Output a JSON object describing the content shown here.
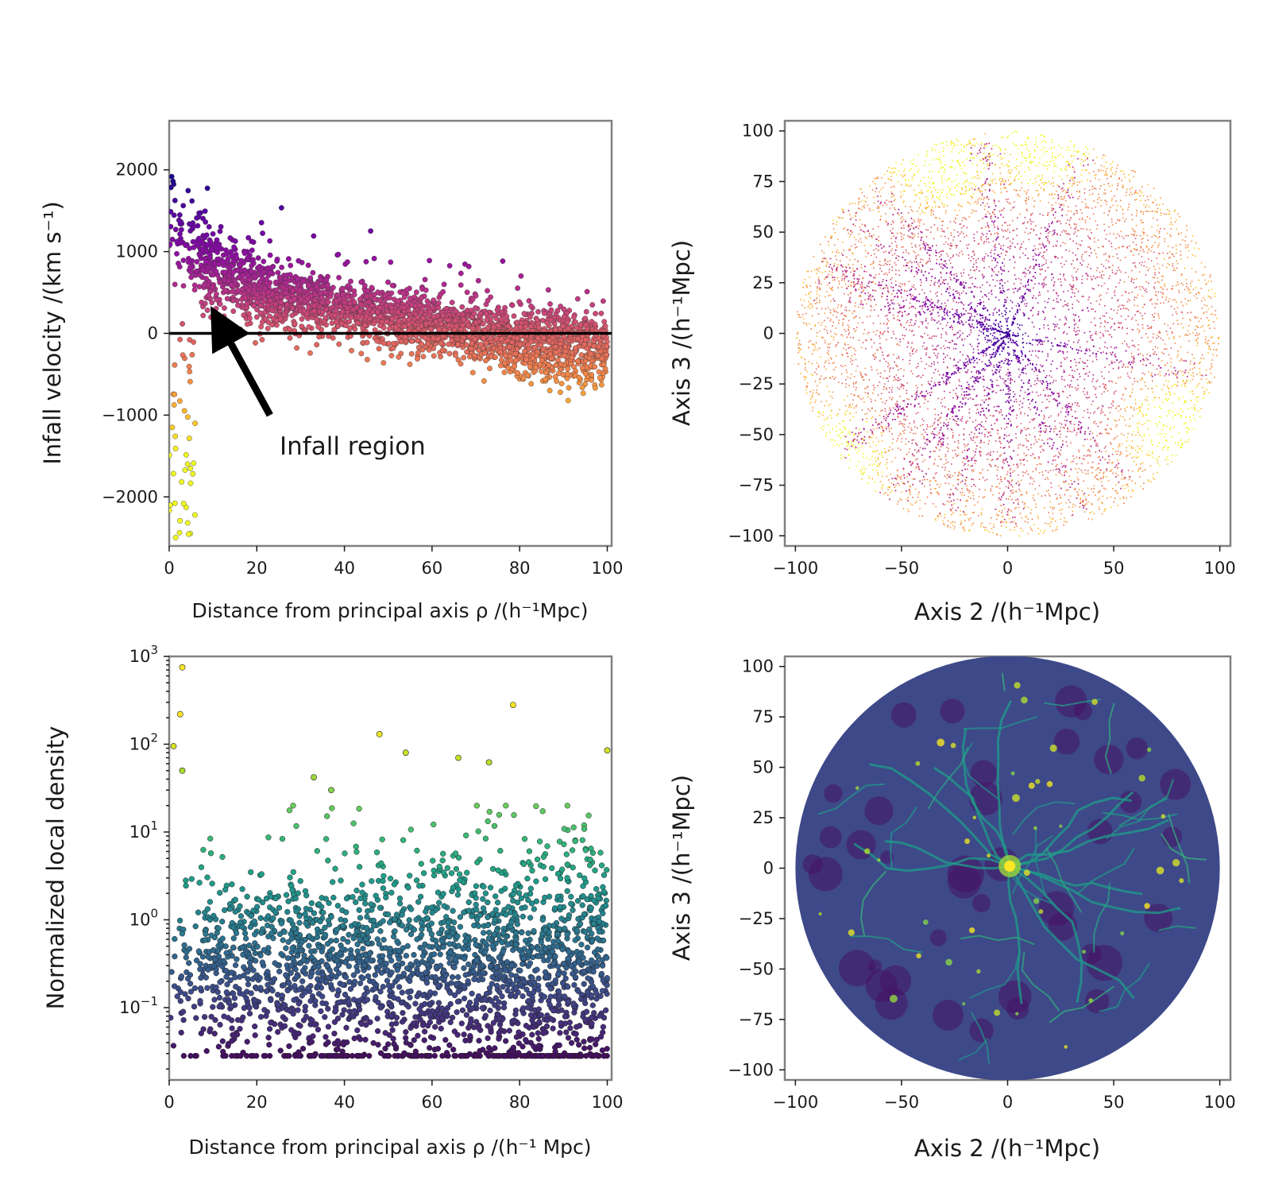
{
  "chart_data": [
    {
      "id": "panel-a",
      "type": "scatter",
      "title": "",
      "xlabel": "Distance from principal axis ρ  /(h⁻¹Mpc)",
      "ylabel": "Infall velocity /(km s⁻¹)",
      "xlim": [
        0,
        101
      ],
      "ylim": [
        -2600,
        2600
      ],
      "xticks": [
        0,
        20,
        40,
        60,
        80,
        100
      ],
      "yticks": [
        -2000,
        -1000,
        0,
        1000,
        2000
      ],
      "xtick_labels": [
        "0",
        "20",
        "40",
        "60",
        "80",
        "100"
      ],
      "ytick_labels": [
        "−2000",
        "−1000",
        "0",
        "1000",
        "2000"
      ],
      "colormap": "plasma",
      "color_by": "infall velocity (high = dark purple, low = yellow)",
      "reference_line": {
        "y": 0,
        "color": "#000000"
      },
      "trend": {
        "x": [
          0,
          5,
          10,
          20,
          30,
          40,
          50,
          60,
          70,
          80,
          90,
          100
        ],
        "median_y": [
          1400,
          1000,
          800,
          550,
          400,
          300,
          200,
          120,
          0,
          -100,
          -150,
          -200
        ],
        "spread": [
          600,
          500,
          380,
          320,
          280,
          260,
          260,
          260,
          280,
          300,
          320,
          330
        ]
      },
      "annotation": {
        "text": "Infall region",
        "arrow_from": [
          23,
          -1000
        ],
        "arrow_to": [
          11,
          180
        ]
      }
    },
    {
      "id": "panel-b",
      "type": "scatter",
      "title": "",
      "xlabel": "Axis 2 /(h⁻¹Mpc)",
      "ylabel": "Axis 3 /(h⁻¹Mpc)",
      "xlim": [
        -105,
        105
      ],
      "ylim": [
        -105,
        105
      ],
      "xticks": [
        -100,
        -50,
        0,
        50,
        100
      ],
      "yticks": [
        -100,
        -75,
        -50,
        -25,
        0,
        25,
        50,
        75,
        100
      ],
      "xtick_labels": [
        "−100",
        "−50",
        "0",
        "50",
        "100"
      ],
      "ytick_labels": [
        "−100",
        "−75",
        "−50",
        "−25",
        "0",
        "25",
        "50",
        "75",
        "100"
      ],
      "colormap": "plasma",
      "region": {
        "shape": "disk",
        "center": [
          0,
          0
        ],
        "radius": 100
      },
      "filaments_centered_at": [
        0,
        0
      ],
      "bright_regions": [
        [
          15,
          90
        ],
        [
          -30,
          80
        ],
        [
          75,
          -45
        ],
        [
          -80,
          -60
        ]
      ]
    },
    {
      "id": "panel-c",
      "type": "scatter",
      "title": "",
      "xlabel": "Distance from principal axis ρ  /(h⁻¹ Mpc)",
      "ylabel": "Normalized local density",
      "xlim": [
        0,
        101
      ],
      "yscale": "log",
      "ylim": [
        0.015,
        1000
      ],
      "xticks": [
        0,
        20,
        40,
        60,
        80,
        100
      ],
      "xtick_labels": [
        "0",
        "20",
        "40",
        "60",
        "80",
        "100"
      ],
      "yticks": [
        0.1,
        1,
        10,
        100,
        1000
      ],
      "ytick_labels": [
        {
          "base": "10",
          "exp": "−1"
        },
        {
          "base": "10",
          "exp": "0"
        },
        {
          "base": "10",
          "exp": "1"
        },
        {
          "base": "10",
          "exp": "2"
        },
        {
          "base": "10",
          "exp": "3"
        }
      ],
      "colormap": "viridis",
      "color_by": "normalized local density",
      "outliers": [
        {
          "x": 3,
          "y": 750
        },
        {
          "x": 2.5,
          "y": 220
        },
        {
          "x": 78.5,
          "y": 280
        },
        {
          "x": 1,
          "y": 95
        },
        {
          "x": 48,
          "y": 130
        },
        {
          "x": 54,
          "y": 80
        },
        {
          "x": 100,
          "y": 85
        },
        {
          "x": 66,
          "y": 70
        },
        {
          "x": 73,
          "y": 62
        },
        {
          "x": 3,
          "y": 50
        },
        {
          "x": 33,
          "y": 42
        },
        {
          "x": 37,
          "y": 30
        }
      ]
    },
    {
      "id": "panel-d",
      "type": "heatmap",
      "title": "",
      "xlabel": "Axis 2 /(h⁻¹Mpc)",
      "ylabel": "Axis 3 /(h⁻¹Mpc)",
      "xlim": [
        -105,
        105
      ],
      "ylim": [
        -105,
        105
      ],
      "xticks": [
        -100,
        -50,
        0,
        50,
        100
      ],
      "yticks": [
        -100,
        -75,
        -50,
        -25,
        0,
        25,
        50,
        75,
        100
      ],
      "xtick_labels": [
        "−100",
        "−50",
        "0",
        "50",
        "100"
      ],
      "ytick_labels": [
        "−100",
        "−75",
        "−50",
        "−25",
        "0",
        "25",
        "50",
        "75",
        "100"
      ],
      "colormap": "viridis",
      "region": {
        "shape": "disk",
        "center": [
          0,
          0
        ],
        "radius": 100
      },
      "peak": [
        1,
        1
      ]
    }
  ]
}
